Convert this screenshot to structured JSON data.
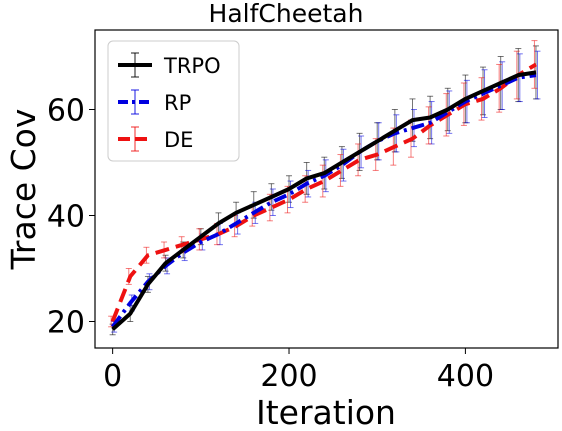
{
  "chart_data": {
    "type": "line",
    "title": "HalfCheetah",
    "xlabel": "Iteration",
    "ylabel": "Trace Cov",
    "xlim": [
      -20,
      505
    ],
    "ylim": [
      15,
      75
    ],
    "xticks": [
      0,
      200,
      400
    ],
    "yticks": [
      20,
      40,
      60
    ],
    "legend_position": "top-left",
    "x": [
      0,
      20,
      40,
      60,
      80,
      100,
      120,
      140,
      160,
      180,
      200,
      220,
      240,
      260,
      280,
      300,
      320,
      340,
      360,
      380,
      400,
      420,
      440,
      460,
      480
    ],
    "series": [
      {
        "name": "TRPO",
        "color": "#000000",
        "dash": "solid",
        "values": [
          18.5,
          21.5,
          27,
          31,
          33.5,
          36,
          38.5,
          40.5,
          42,
          43.5,
          45,
          47,
          48,
          50,
          52,
          54,
          56,
          58,
          58.5,
          60,
          62,
          63.5,
          65,
          66.5,
          67
        ],
        "err": [
          1,
          1.5,
          1.5,
          1.5,
          1.5,
          1.5,
          2,
          2,
          2.5,
          2.5,
          2.5,
          3,
          3,
          3,
          3.5,
          3.5,
          4,
          4,
          4,
          4,
          4.5,
          4.5,
          5,
          5,
          5
        ]
      },
      {
        "name": "RP",
        "color": "#0000e0",
        "dash": "dashdot",
        "values": [
          19,
          23.5,
          27.5,
          30.5,
          33,
          35,
          36.5,
          38.5,
          40.5,
          42.5,
          44,
          46,
          47.5,
          49.5,
          52,
          54,
          55.5,
          56.5,
          57.5,
          59.5,
          61.5,
          63,
          64.5,
          66,
          66.5
        ],
        "err": [
          1,
          1.5,
          1.5,
          1.5,
          1.5,
          1.5,
          2,
          2,
          2,
          2.5,
          2.5,
          2.5,
          3,
          3,
          3,
          3.5,
          3.5,
          3.5,
          4,
          4,
          4,
          4.5,
          4.5,
          4.5,
          4.5
        ]
      },
      {
        "name": "DE",
        "color": "#ee1111",
        "dash": "dashed",
        "values": [
          20,
          28.5,
          32.5,
          33.5,
          34.5,
          35.5,
          36.5,
          38,
          40,
          41.5,
          43,
          45,
          46.5,
          48.5,
          50.5,
          51.5,
          53,
          54.5,
          57,
          59,
          61,
          62,
          64,
          66.5,
          68.5
        ],
        "err": [
          1,
          1.5,
          1.5,
          1.5,
          1.5,
          2,
          2,
          2,
          2,
          2.5,
          2.5,
          2.5,
          3,
          3,
          3,
          3,
          3.5,
          3.5,
          3.5,
          4,
          4,
          4,
          4.5,
          4.5,
          4.5
        ]
      }
    ]
  }
}
